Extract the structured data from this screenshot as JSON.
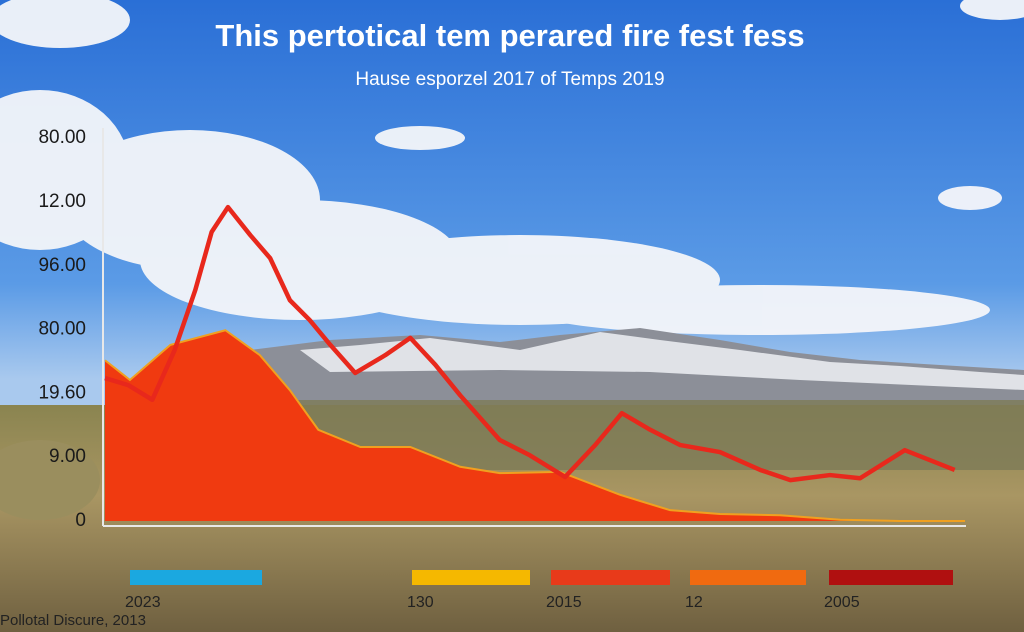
{
  "chart_data": {
    "type": "line_area",
    "title": "This pertotical tem perared fire fest fess",
    "subtitle": "Hause esporzel 2017 of Temps 2019",
    "footer": "Pollotal Discure, 2013",
    "xlim": [
      0,
      100
    ],
    "ylim": [
      0,
      6.2
    ],
    "yticks": [
      {
        "value": 0,
        "label": "0"
      },
      {
        "value": 1,
        "label": "9.00"
      },
      {
        "value": 2,
        "label": "19.60"
      },
      {
        "value": 3,
        "label": "80.00"
      },
      {
        "value": 4,
        "label": "96.00"
      },
      {
        "value": 5,
        "label": "12.00"
      },
      {
        "value": 6,
        "label": "80.00"
      }
    ],
    "grid": false,
    "series": [
      {
        "kind": "area",
        "color": "#f03a10",
        "edge": "#f0a020",
        "x": [
          0,
          2.9,
          7.6,
          14,
          18,
          21.5,
          24.8,
          29.7,
          35.5,
          41.3,
          45.9,
          52.9,
          59.9,
          65.7,
          71.5,
          78.5,
          85.5,
          92.4,
          100
        ],
        "values": [
          2.52,
          2.21,
          2.76,
          2.99,
          2.6,
          2.05,
          1.43,
          1.16,
          1.16,
          0.85,
          0.75,
          0.77,
          0.41,
          0.17,
          0.11,
          0.09,
          0.02,
          0,
          0
        ]
      },
      {
        "kind": "line",
        "color": "#e8281c",
        "x": [
          0,
          2.7,
          5.5,
          8.1,
          10.5,
          12.4,
          14.3,
          16.9,
          19.2,
          21.5,
          23.8,
          26.2,
          29.1,
          32.6,
          35.5,
          38.4,
          41.3,
          45.9,
          49.4,
          53.5,
          57,
          60.1,
          63.4,
          66.9,
          71.5,
          76.2,
          79.7,
          84.3,
          87.8,
          93,
          98.8
        ],
        "values": [
          2.24,
          2.13,
          1.9,
          2.68,
          3.62,
          4.53,
          4.92,
          4.48,
          4.12,
          3.46,
          3.15,
          2.76,
          2.32,
          2.6,
          2.87,
          2.45,
          1.97,
          1.27,
          1.03,
          0.69,
          1.19,
          1.69,
          1.43,
          1.19,
          1.08,
          0.8,
          0.64,
          0.72,
          0.67,
          1.11,
          0.8
        ]
      }
    ],
    "legend": [
      {
        "name": "2023",
        "color": "#1ba8e0"
      },
      {
        "name": "130",
        "color": "#f5b800"
      },
      {
        "name": "2015",
        "color": "#e83a1a"
      },
      {
        "name": "12",
        "color": "#f06a10"
      },
      {
        "name": "2005",
        "color": "#b01010"
      }
    ]
  }
}
